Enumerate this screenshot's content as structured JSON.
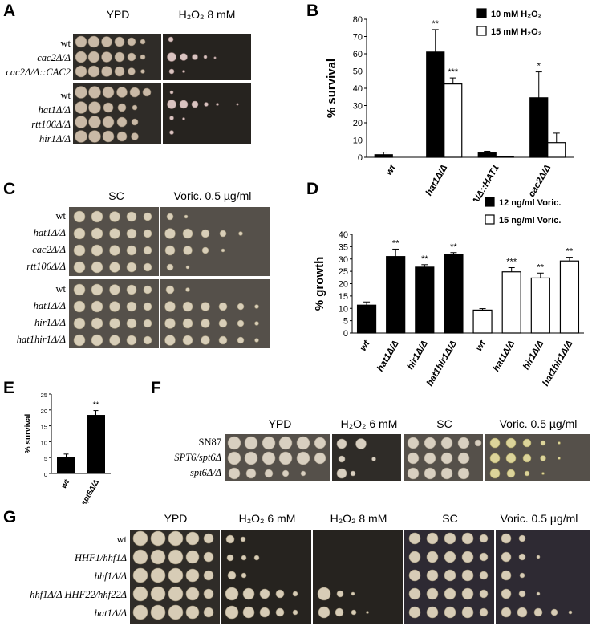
{
  "panels": {
    "A": {
      "label": "A",
      "col_titles": [
        "YPD",
        "H₂O₂ 8 mM"
      ],
      "strains_top": [
        "wt",
        "cac2Δ/Δ",
        "cac2Δ/Δ::CAC2"
      ],
      "strains_bottom": [
        "wt",
        "hat1Δ/Δ",
        "rtt106Δ/Δ",
        "hir1Δ/Δ"
      ]
    },
    "B": {
      "label": "B",
      "chart_data": {
        "type": "bar",
        "categories": [
          "wt",
          "hat1Δ/Δ",
          "hat1Δ/Δ::HAT1",
          "cac2Δ/Δ"
        ],
        "series": [
          {
            "name": "10 mM H₂O₂",
            "values": [
              1.5,
              61,
              2.5,
              34.5
            ],
            "errors": [
              1.5,
              13,
              1,
              15
            ],
            "color": "#000000"
          },
          {
            "name": "15 mM H₂O₂",
            "values": [
              0,
              42.5,
              0.5,
              8.5
            ],
            "errors": [
              0,
              3.5,
              0,
              5.5
            ],
            "color": "#ffffff"
          }
        ],
        "significance": [
          [
            "",
            ""
          ],
          [
            "**",
            "***"
          ],
          [
            "",
            ""
          ],
          [
            "*",
            ""
          ]
        ],
        "ylabel": "% survival",
        "ylim": [
          0,
          80
        ],
        "yticks": [
          0,
          10,
          20,
          30,
          40,
          50,
          60,
          70,
          80
        ],
        "legend_position": "top-right"
      }
    },
    "C": {
      "label": "C",
      "col_titles": [
        "SC",
        "Voric. 0.5 µg/ml"
      ],
      "strains_top": [
        "wt",
        "hat1Δ/Δ",
        "cac2Δ/Δ",
        "rtt106Δ/Δ"
      ],
      "strains_bottom": [
        "wt",
        "hat1Δ/Δ",
        "hir1Δ/Δ",
        "hat1hir1Δ/Δ"
      ]
    },
    "D": {
      "label": "D",
      "chart_data": {
        "type": "bar",
        "categories": [
          "wt",
          "hat1Δ/Δ",
          "hir1Δ/Δ",
          "hat1hir1Δ/Δ",
          "wt",
          "hat1Δ/Δ",
          "hir1Δ/Δ",
          "hat1hir1Δ/Δ"
        ],
        "values": [
          11.3,
          31,
          26.7,
          31.8,
          9.3,
          24.8,
          22.3,
          29.2
        ],
        "errors": [
          1.3,
          3,
          1,
          0.8,
          0.6,
          1.7,
          2,
          1.5
        ],
        "fill": [
          "#000000",
          "#000000",
          "#000000",
          "#000000",
          "#ffffff",
          "#ffffff",
          "#ffffff",
          "#ffffff"
        ],
        "significance": [
          "",
          "**",
          "**",
          "**",
          "",
          "***",
          "**",
          "**"
        ],
        "legend": [
          {
            "name": "12 ng/ml Voric.",
            "color": "#000000"
          },
          {
            "name": "15 ng/ml Voric.",
            "color": "#ffffff"
          }
        ],
        "ylabel": "% growth",
        "ylim": [
          0,
          40
        ],
        "yticks": [
          0,
          5,
          10,
          15,
          20,
          25,
          30,
          35,
          40
        ],
        "legend_position": "top-right"
      }
    },
    "E": {
      "label": "E",
      "chart_data": {
        "type": "bar",
        "categories": [
          "wt",
          "spt6Δ/Δ"
        ],
        "values": [
          5,
          18.3
        ],
        "errors": [
          1.1,
          1.5
        ],
        "significance": [
          "",
          "**"
        ],
        "ylabel": "% survival",
        "ylim": [
          0,
          25
        ],
        "yticks": [
          0,
          5,
          10,
          15,
          20,
          25
        ]
      }
    },
    "F": {
      "label": "F",
      "col_titles": [
        "YPD",
        "H₂O₂ 6 mM",
        "SC",
        "Voric. 0.5 µg/ml"
      ],
      "strains": [
        "SN87",
        "SPT6/spt6Δ",
        "spt6Δ/Δ"
      ]
    },
    "G": {
      "label": "G",
      "col_titles": [
        "YPD",
        "H₂O₂ 6 mM",
        "H₂O₂ 8 mM",
        "SC",
        "Voric. 0.5 µg/ml"
      ],
      "strains": [
        "wt",
        "HHF1/hhf1Δ",
        "hhf1Δ/Δ",
        "hhf1Δ/Δ HHF22/hhf22Δ",
        "hat1Δ/Δ"
      ]
    }
  }
}
